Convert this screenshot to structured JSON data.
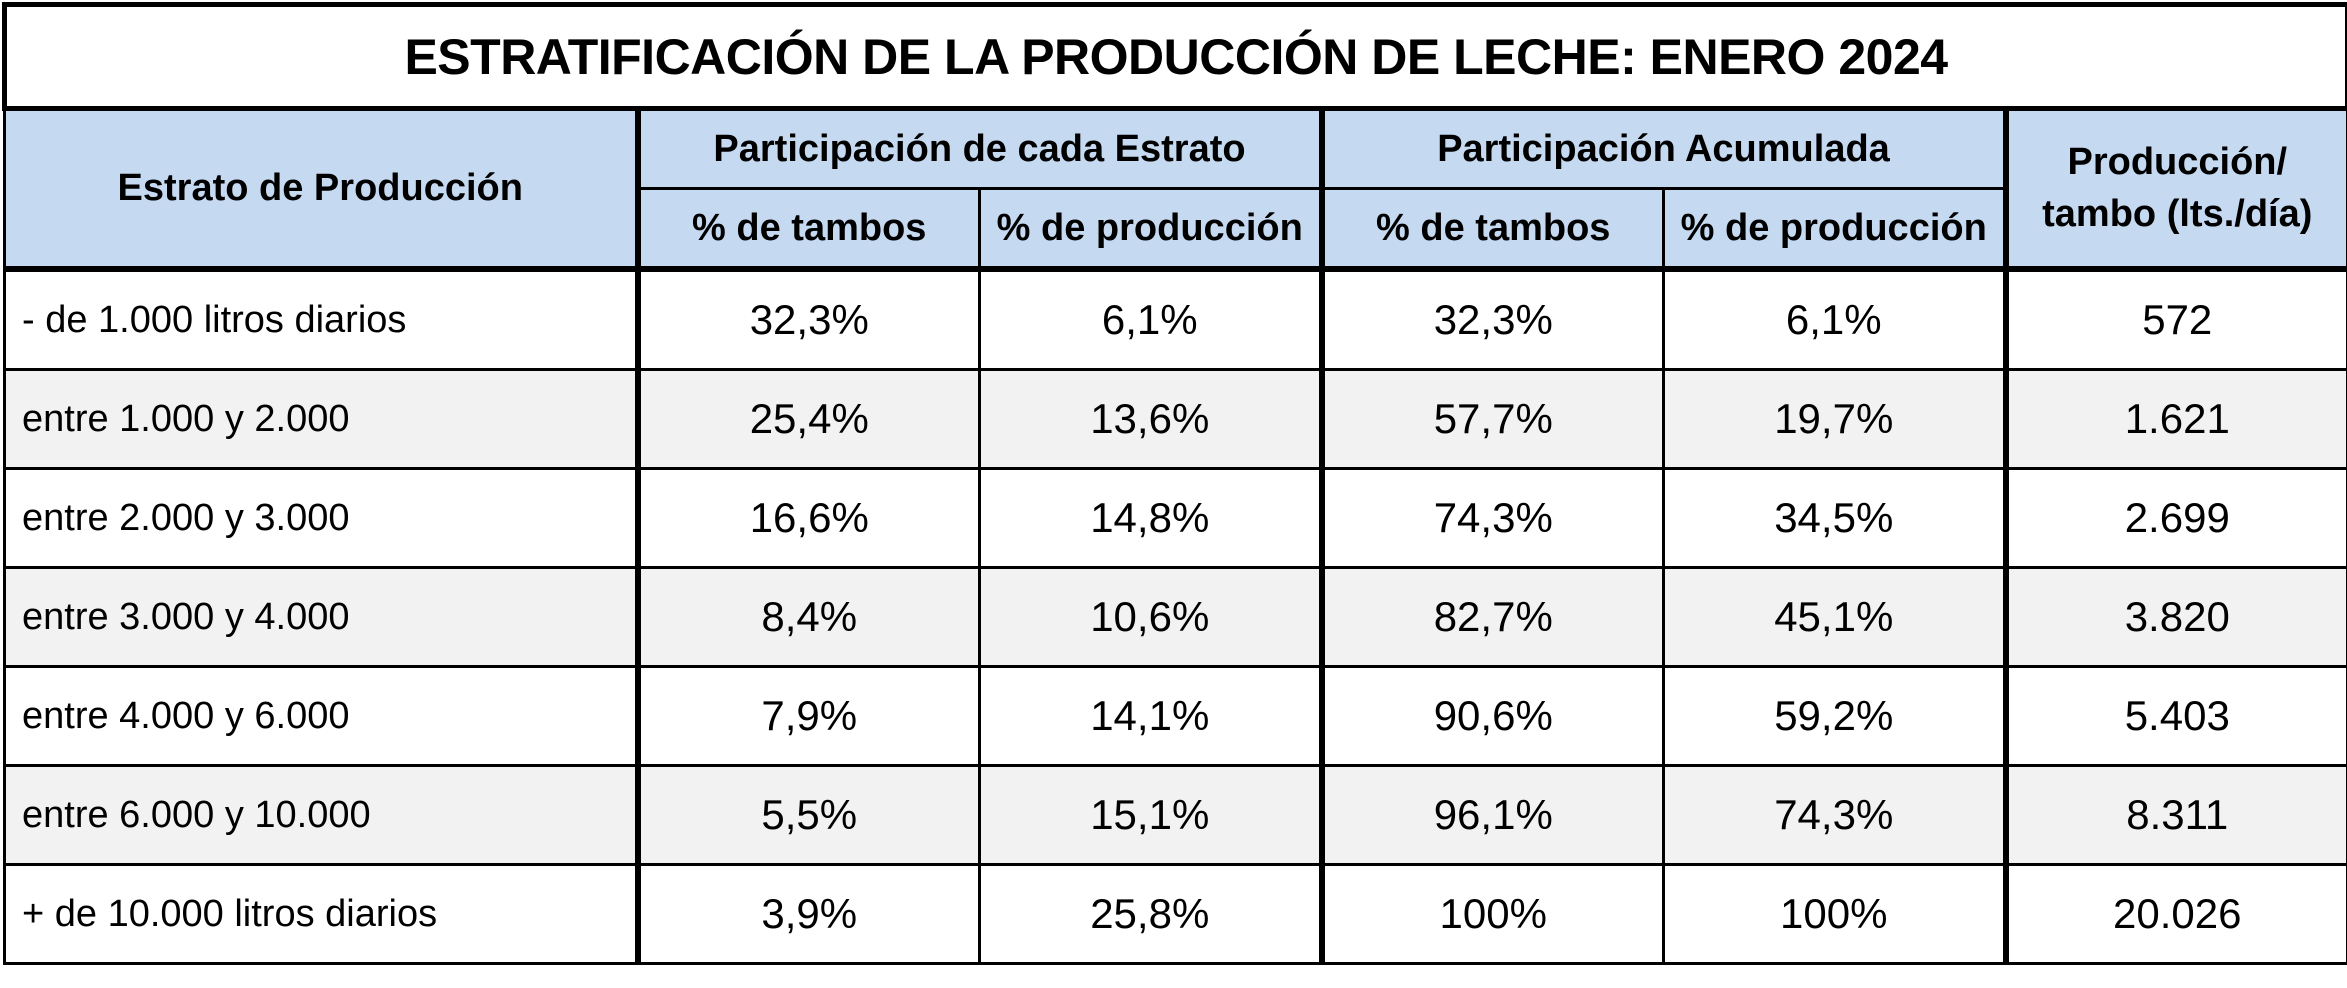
{
  "title": "ESTRATIFICACIÓN DE LA PRODUCCIÓN DE LECHE: ENERO 2024",
  "headers": {
    "stratum": "Estrato de Producción",
    "group_share": "Participación de cada Estrato",
    "group_cumulative": "Participación Acumulada",
    "prod_line1": "Producción/",
    "prod_line2": "tambo (lts./día)",
    "pct_tambos": "% de tambos",
    "pct_produccion": "% de producción"
  },
  "chart_data": {
    "type": "table",
    "title": "ESTRATIFICACIÓN DE LA PRODUCCIÓN DE LECHE: ENERO 2024",
    "columns": [
      "Estrato de Producción",
      "Participación de cada Estrato — % de tambos",
      "Participación de cada Estrato — % de producción",
      "Participación Acumulada — % de tambos",
      "Participación Acumulada — % de producción",
      "Producción/ tambo (lts./día)"
    ],
    "rows": [
      [
        "- de 1.000 litros diarios",
        "32,3%",
        "6,1%",
        "32,3%",
        "6,1%",
        "572"
      ],
      [
        "entre 1.000 y 2.000",
        "25,4%",
        "13,6%",
        "57,7%",
        "19,7%",
        "1.621"
      ],
      [
        "entre 2.000 y 3.000",
        "16,6%",
        "14,8%",
        "74,3%",
        "34,5%",
        "2.699"
      ],
      [
        "entre 3.000 y 4.000",
        "8,4%",
        "10,6%",
        "82,7%",
        "45,1%",
        "3.820"
      ],
      [
        "entre 4.000 y 6.000",
        "7,9%",
        "14,1%",
        "90,6%",
        "59,2%",
        "5.403"
      ],
      [
        "entre 6.000 y 10.000",
        "5,5%",
        "15,1%",
        "96,1%",
        "74,3%",
        "8.311"
      ],
      [
        "+ de 10.000 litros diarios",
        "3,9%",
        "25,8%",
        "100%",
        "100%",
        "20.026"
      ]
    ]
  },
  "colors": {
    "header_bg": "#c5d9f1",
    "alt_row_bg": "#f2f2f2",
    "border": "#000000"
  }
}
